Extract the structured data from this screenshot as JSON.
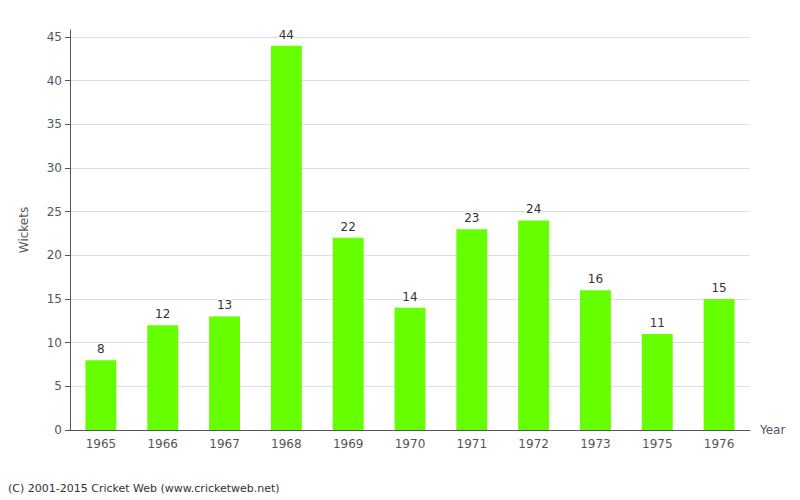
{
  "chart_data": {
    "type": "bar",
    "categories": [
      "1965",
      "1966",
      "1967",
      "1968",
      "1969",
      "1970",
      "1971",
      "1972",
      "1973",
      "1975",
      "1976"
    ],
    "values": [
      8,
      12,
      13,
      44,
      22,
      14,
      23,
      24,
      16,
      11,
      15
    ],
    "color": "#66ff00",
    "xlabel": "Year",
    "ylabel": "Wickets",
    "ylim": [
      0,
      45.8
    ],
    "yticks": [
      0,
      5,
      10,
      15,
      20,
      25,
      30,
      35,
      40,
      45
    ],
    "grid": true,
    "data_labels": true,
    "annotations": [
      "(C) 2001-2015 Cricket Web (www.cricketweb.net)"
    ]
  }
}
